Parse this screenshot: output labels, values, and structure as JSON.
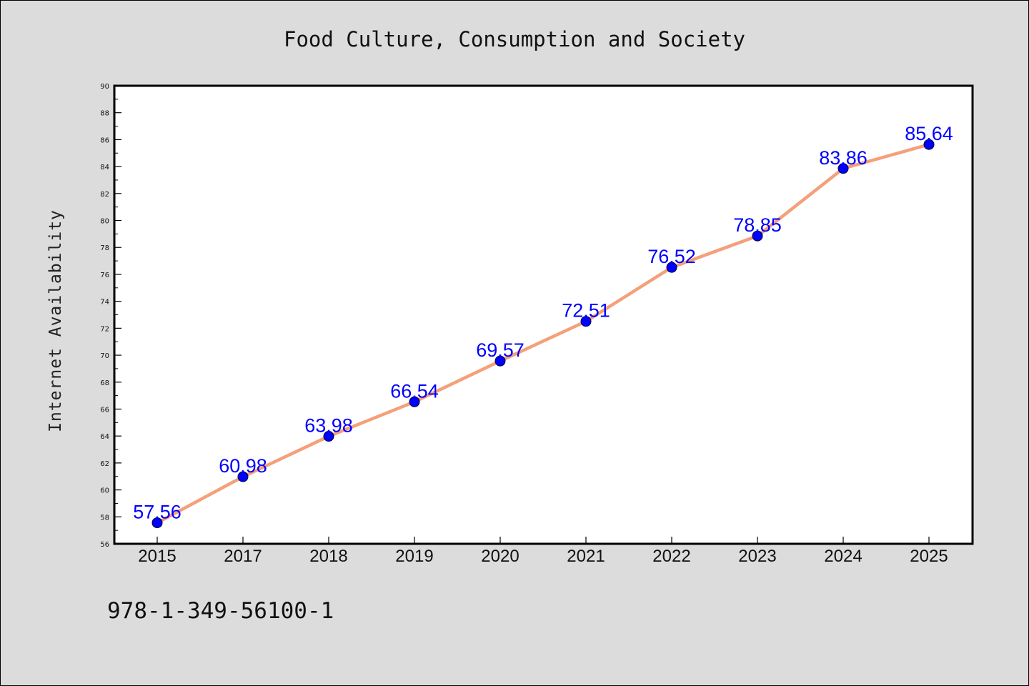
{
  "chart_data": {
    "type": "line",
    "title": "Food Culture, Consumption and Society",
    "xlabel": "",
    "ylabel": "Internet Availability",
    "categories": [
      "2015",
      "2017",
      "2018",
      "2019",
      "2020",
      "2021",
      "2022",
      "2023",
      "2024",
      "2025"
    ],
    "series": [
      {
        "values": [
          57.56,
          60.98,
          63.98,
          66.54,
          69.57,
          72.51,
          76.52,
          78.85,
          83.86,
          85.64
        ],
        "data_labels": [
          "57.56",
          "60.98",
          "63.98",
          "66.54",
          "69.57",
          "72.51",
          "76.52",
          "78.85",
          "83.86",
          "85.64"
        ],
        "line_color": "#f4a07a",
        "marker_color": "#0000ff"
      }
    ],
    "ylim": [
      56,
      90
    ],
    "yticks": [
      "56",
      "58",
      "60",
      "62",
      "64",
      "66",
      "68",
      "70",
      "72",
      "74",
      "76",
      "78",
      "80",
      "82",
      "84",
      "86",
      "88",
      "90"
    ],
    "grid": false,
    "legend": "none",
    "background_color": "#dcdcdc",
    "plot_background_color": "#ffffff"
  },
  "annotation": "978-1-349-56100-1"
}
